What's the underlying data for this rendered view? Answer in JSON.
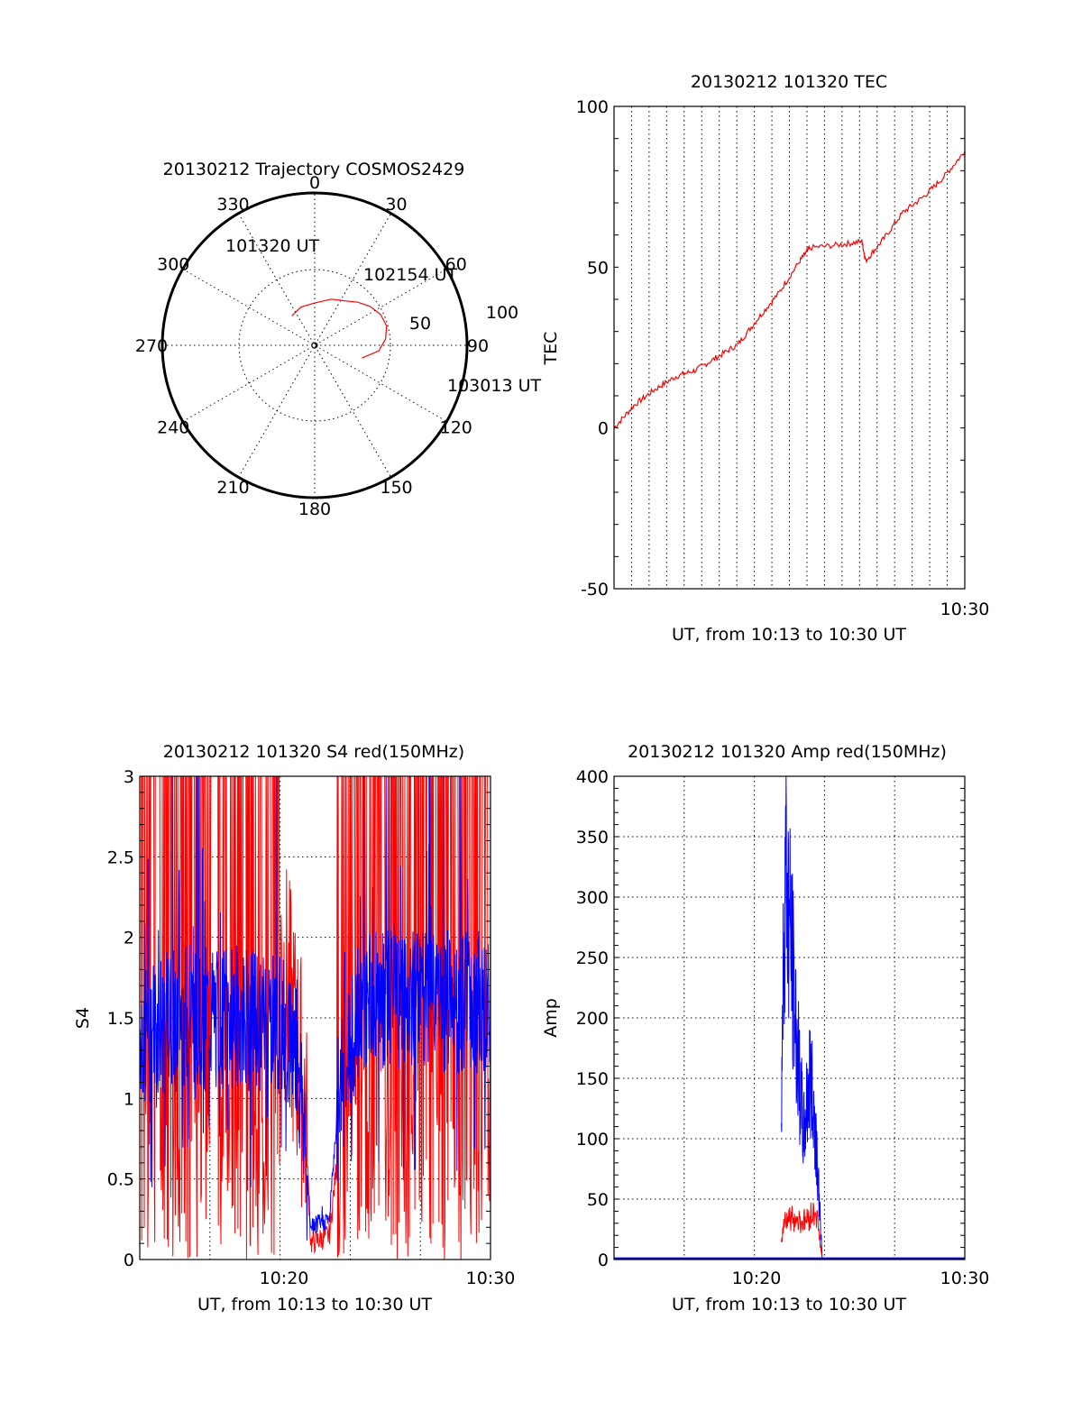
{
  "colors": {
    "red": "#ff0000",
    "blue": "#0000ff",
    "axis": "#000000"
  },
  "chart_data": [
    {
      "id": "trajectory",
      "type": "scatter",
      "title": "20130212 Trajectory COSMOS2429",
      "polar": true,
      "azimuth_labels": [
        "0",
        "30",
        "60",
        "90",
        "120",
        "150",
        "180",
        "210",
        "240",
        "270",
        "300",
        "330"
      ],
      "radial_labels": [
        "50",
        "100"
      ],
      "series": [
        {
          "color": "#ff0000",
          "points": [
            [
              -38,
              82
            ],
            [
              -20,
              80
            ],
            [
              0,
              79
            ],
            [
              20,
              75
            ],
            [
              35,
              72
            ],
            [
              45,
              68
            ],
            [
              55,
              64
            ],
            [
              65,
              61
            ],
            [
              75,
              60
            ],
            [
              85,
              62
            ],
            [
              95,
              66
            ],
            [
              105,
              75
            ]
          ]
        }
      ],
      "annotations": [
        "101320 UT",
        "102154 UT",
        "103013 UT"
      ]
    },
    {
      "id": "tec",
      "type": "line",
      "title": "20130212 101320 TEC",
      "xlabel": "UT, from 10:13 to 10:30 UT",
      "ylabel": "TEC",
      "ylim": [
        -50,
        100
      ],
      "yticks": [
        "-50",
        "0",
        "50",
        "100"
      ],
      "xticks": [
        "10:30"
      ],
      "series": [
        {
          "color": "#ff0000",
          "points": [
            [
              10.217,
              0
            ],
            [
              10.233,
              7
            ],
            [
              10.25,
              12
            ],
            [
              10.267,
              16
            ],
            [
              10.283,
              18
            ],
            [
              10.3,
              22
            ],
            [
              10.317,
              26
            ],
            [
              10.333,
              34
            ],
            [
              10.35,
              42
            ],
            [
              10.367,
              52
            ],
            [
              10.375,
              56
            ],
            [
              10.4,
              57
            ],
            [
              10.417,
              58
            ],
            [
              10.42,
              52
            ],
            [
              10.433,
              58
            ],
            [
              10.45,
              67
            ],
            [
              10.467,
              72
            ],
            [
              10.483,
              78
            ],
            [
              10.5,
              86
            ]
          ]
        }
      ]
    },
    {
      "id": "s4",
      "type": "line",
      "title": "20130212 101320 S4 red(150MHz)",
      "xlabel": "UT, from 10:13 to 10:30 UT",
      "ylabel": "S4",
      "ylim": [
        0,
        3
      ],
      "yticks": [
        "0",
        "0.5",
        "1",
        "1.5",
        "2",
        "2.5",
        "3"
      ],
      "xticks": [
        "10:20",
        "10:30"
      ],
      "series": [
        {
          "color": "#ff0000",
          "points": [
            [
              10.217,
              1.5
            ],
            [
              10.25,
              2.5
            ],
            [
              10.3,
              2.8
            ],
            [
              10.333,
              1.8
            ],
            [
              10.35,
              1.0
            ],
            [
              10.355,
              0.1
            ],
            [
              10.37,
              0.15
            ],
            [
              10.38,
              0.9
            ],
            [
              10.4,
              2.6
            ],
            [
              10.45,
              2.8
            ],
            [
              10.5,
              2.9
            ]
          ]
        },
        {
          "color": "#0000ff",
          "points": [
            [
              10.217,
              1.4
            ],
            [
              10.25,
              1.5
            ],
            [
              10.3,
              1.5
            ],
            [
              10.333,
              1.45
            ],
            [
              10.345,
              1.3
            ],
            [
              10.355,
              0.2
            ],
            [
              10.37,
              0.25
            ],
            [
              10.38,
              1.3
            ],
            [
              10.4,
              1.6
            ],
            [
              10.45,
              1.6
            ],
            [
              10.5,
              1.6
            ]
          ]
        }
      ]
    },
    {
      "id": "amp",
      "type": "line",
      "title": "20130212 101320 Amp red(150MHz)",
      "xlabel": "UT, from 10:13 to 10:30 UT",
      "ylabel": "Amp",
      "ylim": [
        0,
        400
      ],
      "yticks": [
        "0",
        "50",
        "100",
        "150",
        "200",
        "250",
        "300",
        "350",
        "400"
      ],
      "xticks": [
        "10:20",
        "10:30"
      ],
      "series": [
        {
          "color": "#ff0000",
          "points": [
            [
              10.217,
              0
            ],
            [
              10.35,
              0
            ],
            [
              10.355,
              40
            ],
            [
              10.37,
              35
            ],
            [
              10.38,
              45
            ],
            [
              10.385,
              0
            ],
            [
              10.5,
              0
            ]
          ]
        },
        {
          "color": "#0000ff",
          "points": [
            [
              10.217,
              0
            ],
            [
              10.35,
              0
            ],
            [
              10.355,
              390
            ],
            [
              10.36,
              300
            ],
            [
              10.365,
              200
            ],
            [
              10.37,
              120
            ],
            [
              10.375,
              180
            ],
            [
              10.38,
              120
            ],
            [
              10.385,
              0
            ],
            [
              10.5,
              0
            ]
          ]
        }
      ]
    }
  ]
}
